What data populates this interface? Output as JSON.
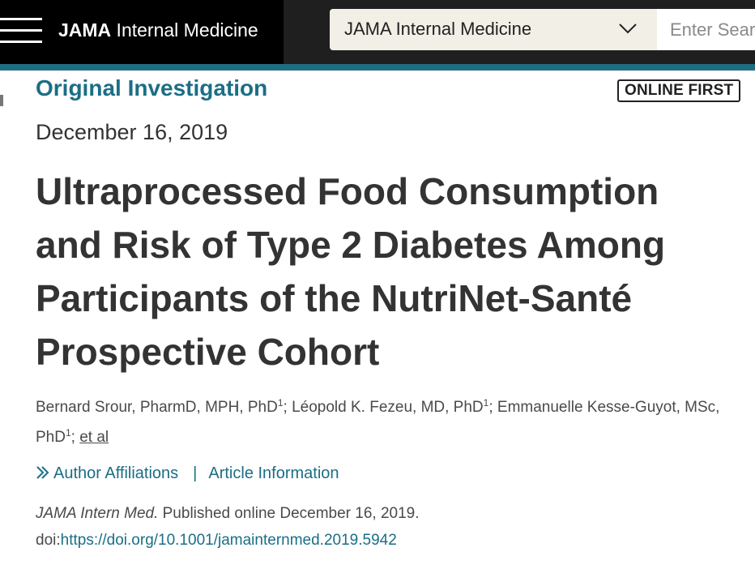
{
  "header": {
    "brand_bold": "JAMA",
    "brand_rest": " Internal Medicine",
    "journal_select": "JAMA Internal Medicine",
    "search_placeholder": "Enter Search"
  },
  "article": {
    "section_label": "Original Investigation",
    "badge": "ONLINE FIRST",
    "date": "December 16, 2019",
    "title": "Ultraprocessed Food Consumption and Risk of Type 2 Diabetes Among Participants of the NutriNet-Santé Prospective Cohort",
    "authors": [
      {
        "name": "Bernard Srour, PharmD, MPH, PhD",
        "affil": "1"
      },
      {
        "name": "Léopold K. Fezeu, MD, PhD",
        "affil": "1"
      },
      {
        "name": "Emmanuelle Kesse-Guyot, MSc, PhD",
        "affil": "1"
      }
    ],
    "et_al": "et al",
    "affiliations_link": "Author Affiliations",
    "separator": "|",
    "article_info_link": "Article Information",
    "citation_journal": "JAMA Intern Med.",
    "citation_text": " Published online December 16, 2019.",
    "doi_prefix": "doi:",
    "doi_url": "https://doi.org/10.1001/jamainternmed.2019.5942"
  },
  "icons": {
    "menu": "hamburger-menu-icon",
    "select": "chevron-down-icon",
    "affiliations": "double-chevron-right-icon"
  },
  "colors": {
    "header_bg": "#000000",
    "accent": "#1e6d83",
    "link": "#1b6e86"
  }
}
